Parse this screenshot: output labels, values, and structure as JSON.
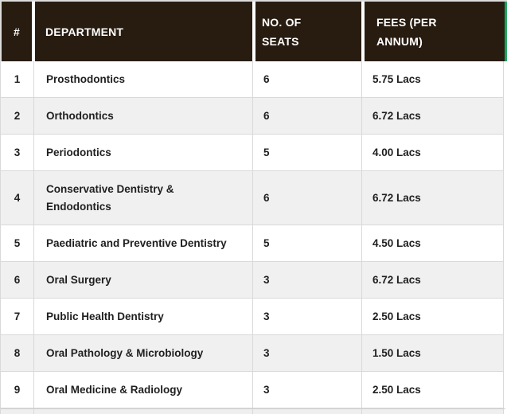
{
  "chart_data": {
    "type": "table",
    "title": "",
    "columns": [
      "#",
      "DEPARTMENT",
      "NO. OF SEATS",
      "FEES (PER ANNUM)"
    ],
    "rows": [
      [
        "1",
        "Prosthodontics",
        "6",
        "5.75 Lacs"
      ],
      [
        "2",
        "Orthodontics",
        "6",
        "6.72 Lacs"
      ],
      [
        "3",
        "Periodontics",
        "5",
        "4.00 Lacs"
      ],
      [
        "4",
        "Conservative Dentistry & Endodontics",
        "6",
        "6.72 Lacs"
      ],
      [
        "5",
        "Paediatric and Preventive Dentistry",
        "5",
        "4.50 Lacs"
      ],
      [
        "6",
        "Oral Surgery",
        "3",
        "6.72 Lacs"
      ],
      [
        "7",
        "Public Health Dentistry",
        "3",
        "2.50 Lacs"
      ],
      [
        "8",
        "Oral Pathology & Microbiology",
        "3",
        "1.50 Lacs"
      ],
      [
        "9",
        "Oral Medicine & Radiology",
        "3",
        "2.50 Lacs"
      ]
    ]
  },
  "table_ui": {
    "header_display": [
      "#",
      "DEPARTMENT",
      "NO. OF\nSEATS",
      "FEES (PER\nANNUM)"
    ],
    "dept4_display": "Conservative Dentistry &\nEndodontics"
  },
  "colors": {
    "header_bg": "#281c11",
    "header_text": "#ffffff",
    "accent_green": "#18a45c",
    "row_bg": "#ffffff",
    "row_alt_bg": "#f0f0f0",
    "row_border": "#d9d9d9",
    "body_text": "#1f1f1f"
  }
}
